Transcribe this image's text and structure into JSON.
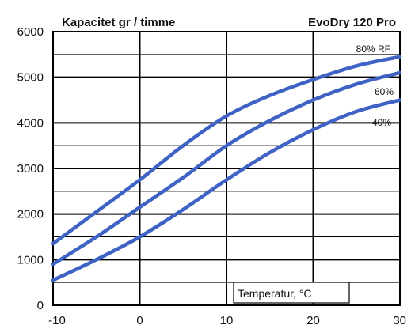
{
  "chart_data": {
    "type": "line",
    "title": "Kapacitet gr / timme",
    "subtitle": "EvoDry 120 Pro",
    "xlabel": "Temperatur, °C",
    "ylabel": "",
    "xlim": [
      -10,
      30
    ],
    "ylim": [
      0,
      6000
    ],
    "x_ticks": [
      "-10",
      "0",
      "10",
      "20",
      "30"
    ],
    "y_ticks": [
      "0",
      "1000",
      "2000",
      "3000",
      "4000",
      "5000",
      "6000"
    ],
    "grid": true,
    "colors": {
      "line": "#3f63c4",
      "grid": "#000000"
    },
    "series": [
      {
        "name": "80% RF",
        "x": [
          -10,
          -5,
          0,
          5,
          10,
          15,
          20,
          25,
          30
        ],
        "y": [
          1350,
          2050,
          2750,
          3500,
          4150,
          4600,
          4950,
          5250,
          5450
        ]
      },
      {
        "name": "60%",
        "x": [
          -10,
          -5,
          0,
          5,
          10,
          15,
          20,
          25,
          30
        ],
        "y": [
          900,
          1500,
          2150,
          2800,
          3500,
          4050,
          4500,
          4850,
          5100
        ]
      },
      {
        "name": "40%",
        "x": [
          -10,
          -5,
          0,
          5,
          10,
          15,
          20,
          25,
          30
        ],
        "y": [
          550,
          1000,
          1500,
          2100,
          2750,
          3350,
          3850,
          4250,
          4500
        ]
      }
    ]
  }
}
